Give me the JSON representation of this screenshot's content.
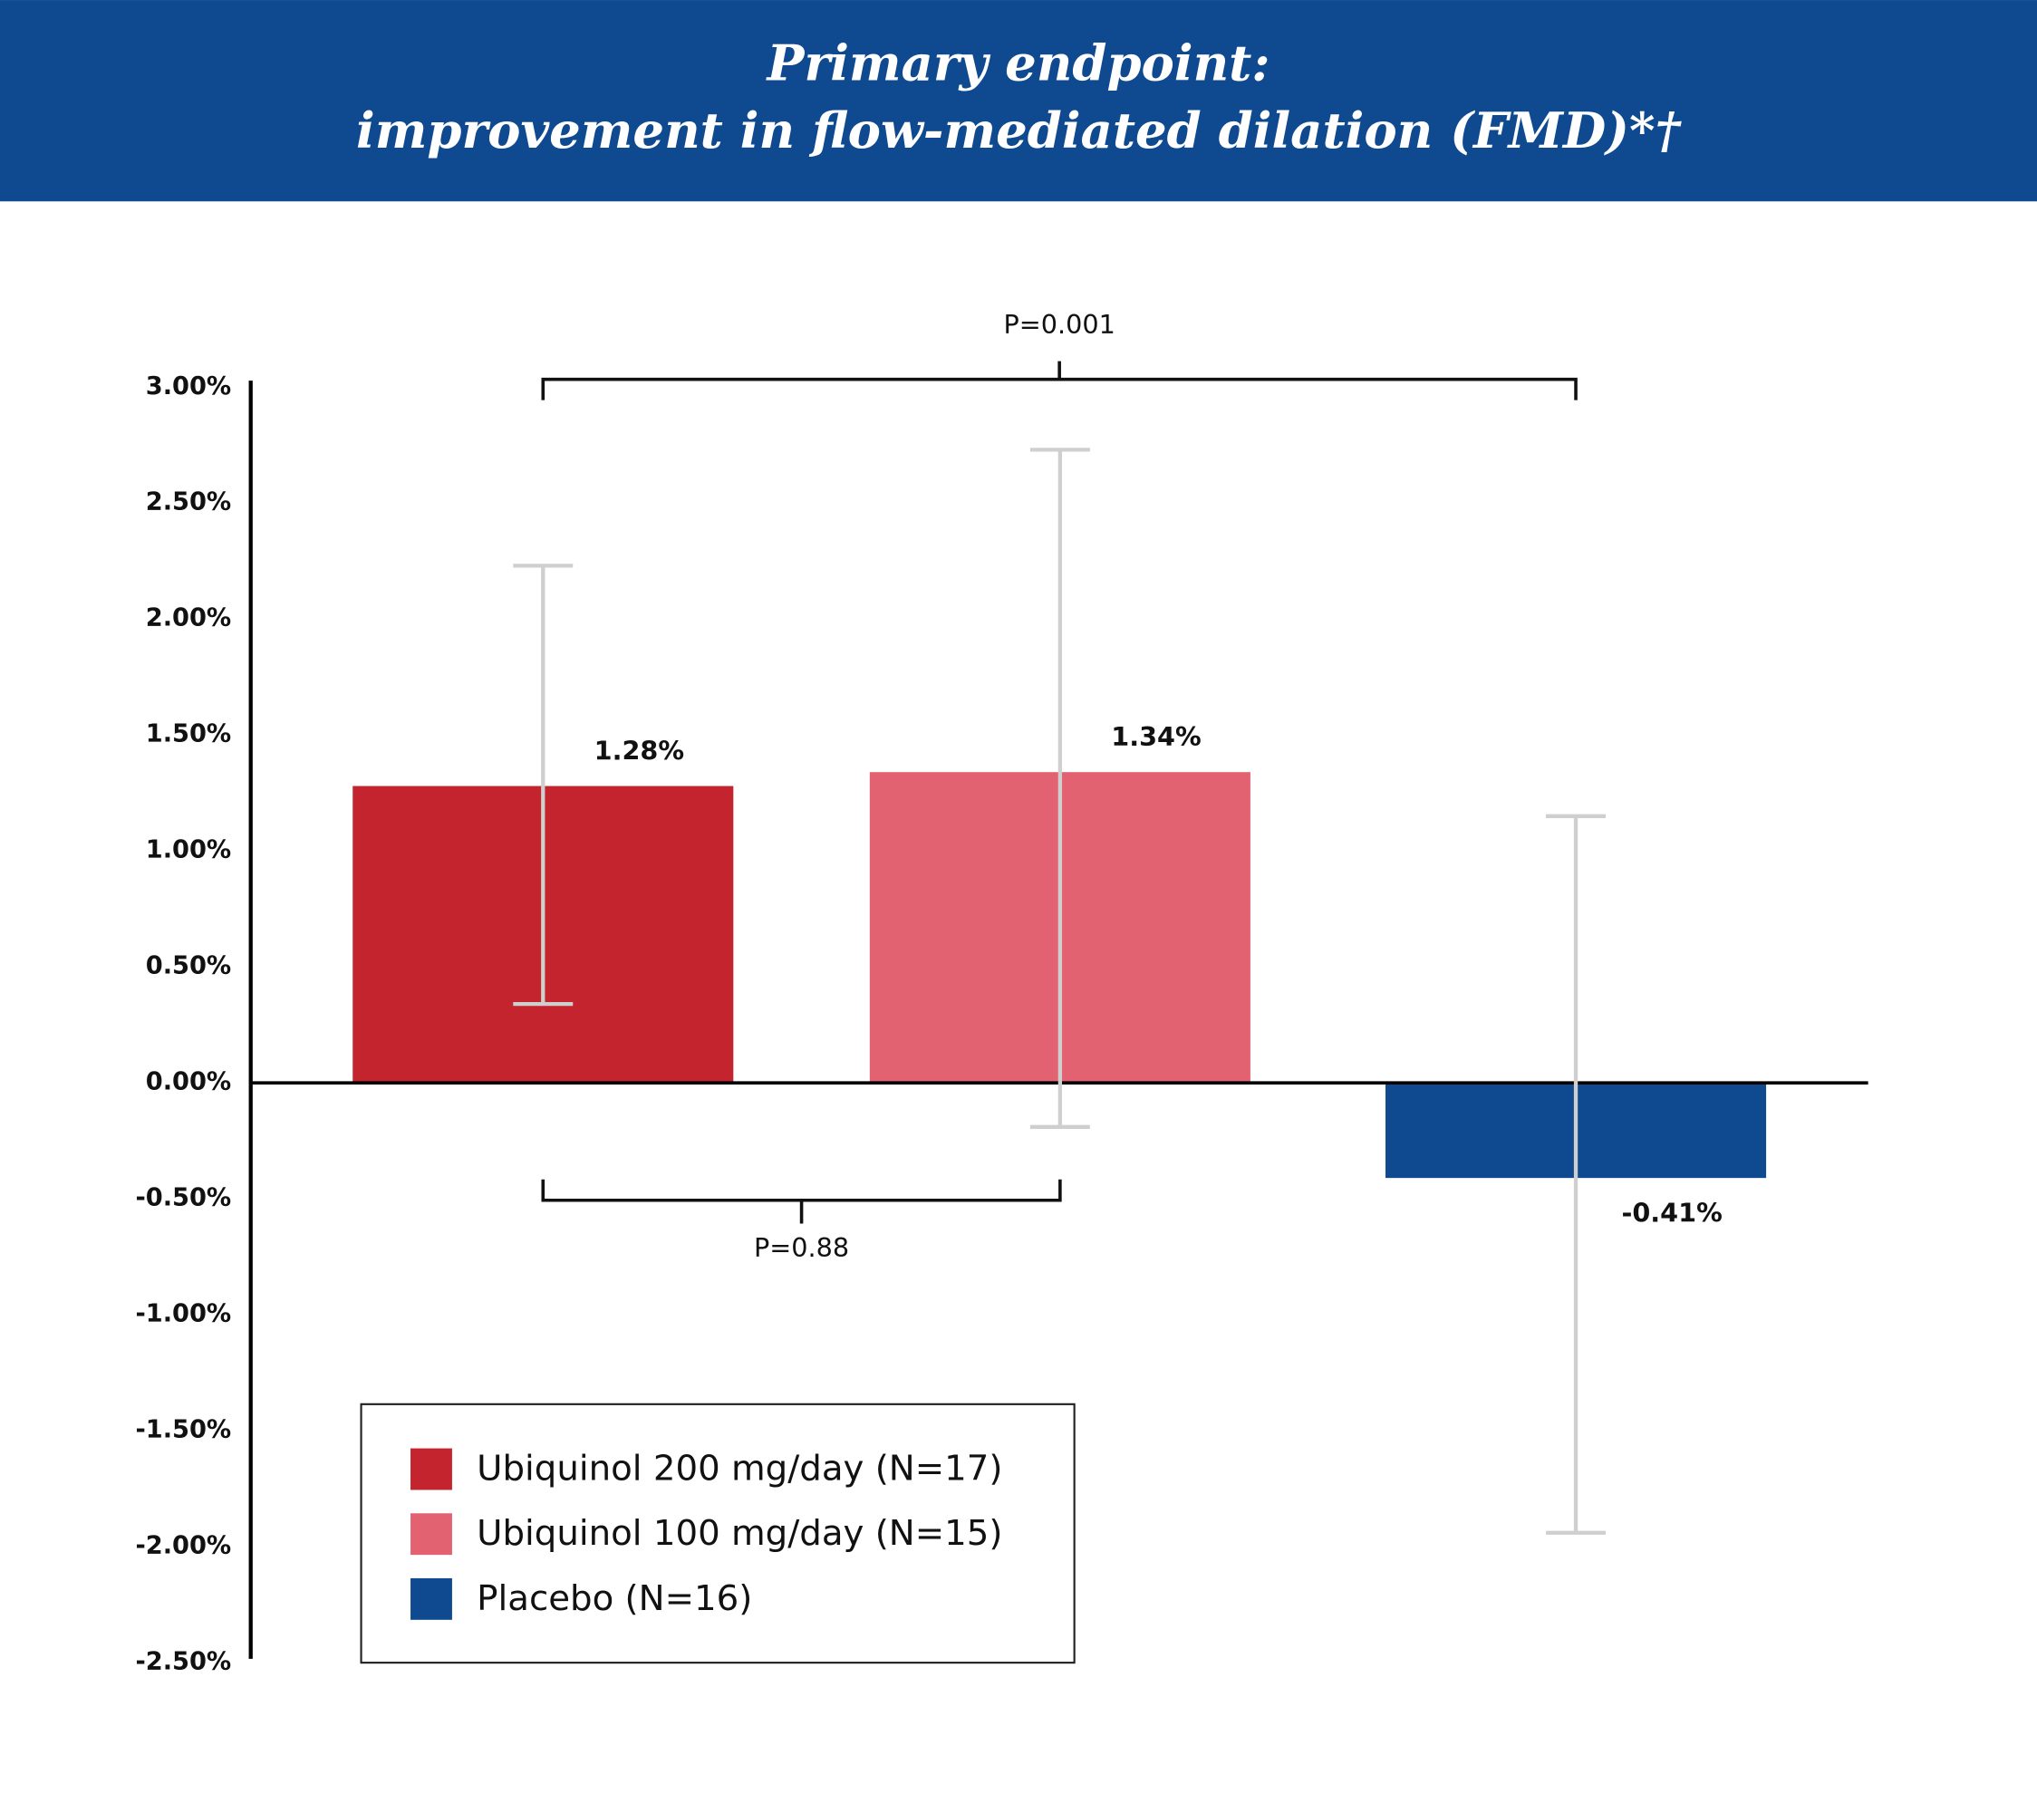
{
  "chart_data": {
    "type": "bar",
    "title": [
      "Primary endpoint:",
      "improvement in flow-mediated dilation (FMD)*†"
    ],
    "categories": [
      "Ubiquinol 200 mg/day (N=17)",
      "Ubiquinol 100 mg/day (N=15)",
      "Placebo (N=16)"
    ],
    "colors": [
      "#c3242d",
      "#e36272",
      "#0f4a91"
    ],
    "values": [
      1.28,
      1.34,
      -0.41
    ],
    "value_labels": [
      "1.28%",
      "1.34%",
      "-0.41%"
    ],
    "error_low": [
      0.34,
      -0.19,
      -1.94
    ],
    "error_high": [
      2.23,
      2.73,
      1.15
    ],
    "ylim": [
      -2.5,
      3.0
    ],
    "yticks": [
      {
        "value": 3.0,
        "label": "3.00%"
      },
      {
        "value": 2.5,
        "label": "2.50%"
      },
      {
        "value": 2.0,
        "label": "2.00%"
      },
      {
        "value": 1.5,
        "label": "1.50%"
      },
      {
        "value": 1.0,
        "label": "1.00%"
      },
      {
        "value": 0.5,
        "label": "0.50%"
      },
      {
        "value": 0.0,
        "label": "0.00%"
      },
      {
        "value": -0.5,
        "label": "-0.50%"
      },
      {
        "value": -1.0,
        "label": "-1.00%"
      },
      {
        "value": -1.5,
        "label": "-1.50%"
      },
      {
        "value": -2.0,
        "label": "-2.00%"
      },
      {
        "value": -2.5,
        "label": "-2.50%"
      }
    ],
    "annotations": [
      "P=0.001",
      "P=0.88"
    ],
    "grid": false
  }
}
